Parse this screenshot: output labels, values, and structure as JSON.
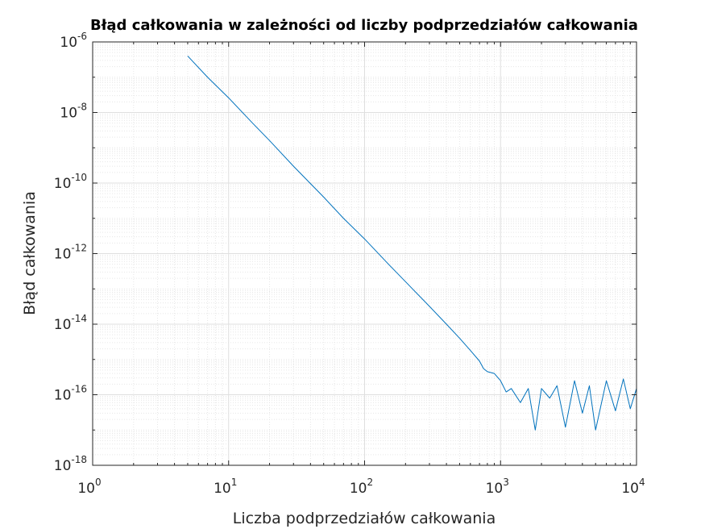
{
  "chart_data": {
    "type": "line",
    "title": "Błąd całkowania w zależności od liczby podprzedziałów całkowania",
    "xlabel": "Liczba podprzedziałów całkowania",
    "ylabel": "Błąd całkowania",
    "xscale": "log",
    "yscale": "log",
    "xlim": [
      1,
      10000
    ],
    "ylim": [
      1e-18,
      1e-06
    ],
    "grid": "on (major and minor)",
    "xticks": [
      {
        "base": "10",
        "exp": "0"
      },
      {
        "base": "10",
        "exp": "1"
      },
      {
        "base": "10",
        "exp": "2"
      },
      {
        "base": "10",
        "exp": "3"
      },
      {
        "base": "10",
        "exp": "4"
      }
    ],
    "yticks": [
      {
        "base": "10",
        "exp": "-18"
      },
      {
        "base": "10",
        "exp": "-16"
      },
      {
        "base": "10",
        "exp": "-14"
      },
      {
        "base": "10",
        "exp": "-12"
      },
      {
        "base": "10",
        "exp": "-10"
      },
      {
        "base": "10",
        "exp": "-8"
      },
      {
        "base": "10",
        "exp": "-6"
      }
    ],
    "series": [
      {
        "color": "#0072bd",
        "x": [
          5,
          7,
          10,
          15,
          20,
          30,
          50,
          70,
          100,
          150,
          200,
          300,
          400,
          500,
          600,
          700,
          750,
          800,
          900,
          1000,
          1100,
          1200,
          1400,
          1600,
          1800,
          2000,
          2300,
          2600,
          3000,
          3500,
          4000,
          4500,
          5000,
          6000,
          7000,
          8000,
          9000,
          10000
        ],
        "y": [
          4e-07,
          1e-07,
          2.6e-08,
          5e-09,
          1.6e-09,
          3e-10,
          4e-11,
          1e-11,
          2.6e-12,
          5e-13,
          1.6e-13,
          3.2e-14,
          1e-14,
          4e-15,
          1.8e-15,
          9e-16,
          5.5e-16,
          4.5e-16,
          4e-16,
          2.5e-16,
          1.2e-16,
          1.5e-16,
          6e-17,
          1.5e-16,
          1e-17,
          1.5e-16,
          8e-17,
          1.8e-16,
          1.2e-17,
          2.5e-16,
          3e-17,
          1.8e-16,
          1e-17,
          2.5e-16,
          3.5e-17,
          2.8e-16,
          4e-17,
          1.5e-16
        ]
      }
    ]
  }
}
